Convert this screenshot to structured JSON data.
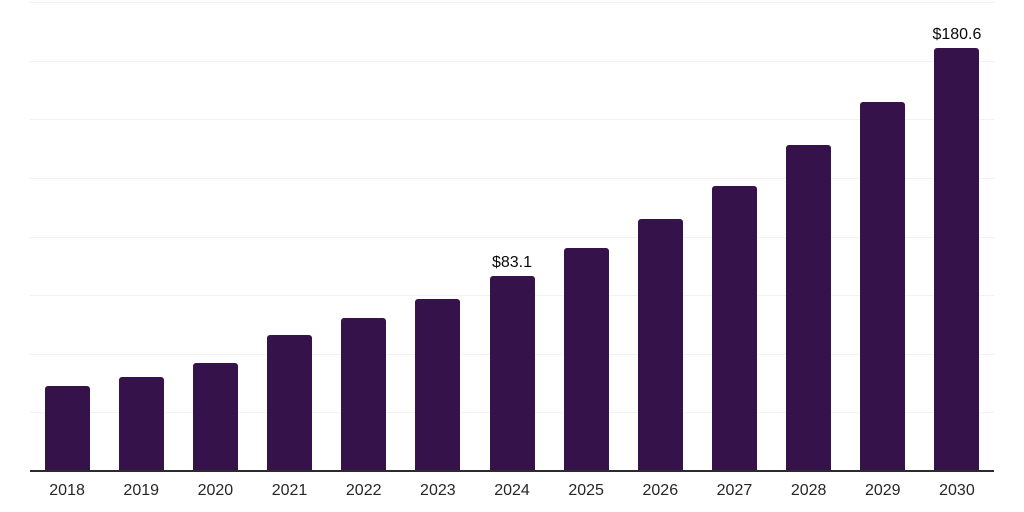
{
  "chart_data": {
    "type": "bar",
    "title": "",
    "xlabel": "",
    "ylabel": "",
    "categories": [
      "2018",
      "2019",
      "2020",
      "2021",
      "2022",
      "2023",
      "2024",
      "2025",
      "2026",
      "2027",
      "2028",
      "2029",
      "2030"
    ],
    "values": [
      36.1,
      40.0,
      46.0,
      58.2,
      65.1,
      73.5,
      83.1,
      94.9,
      107.4,
      121.6,
      139.0,
      157.5,
      180.6
    ],
    "data_labels": {
      "2024": "$83.1",
      "2030": "$180.6"
    },
    "currency_prefix": "$",
    "ylim": [
      0,
      200
    ],
    "ytick_step": 25,
    "grid": true,
    "y_axis_labels_visible": false,
    "legend": "none"
  },
  "colors": {
    "background": "#ffffff",
    "bar": "#35124A",
    "gridline": "#f2f2f2",
    "axis_line": "#2b2b2b",
    "tick_label": "#262626",
    "data_label": "#0a0a0a"
  }
}
